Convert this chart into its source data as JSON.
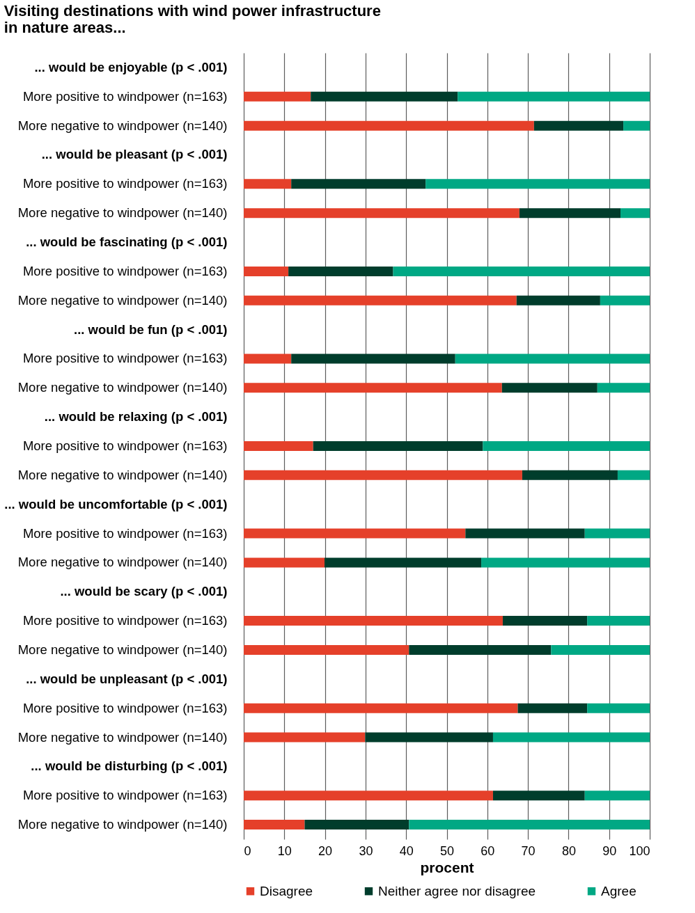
{
  "chart_data": {
    "type": "bar",
    "orientation": "horizontal",
    "stacked": true,
    "title": "Visiting destinations with wind power infrastructure\nin nature areas...",
    "xlabel": "procent",
    "categories": [
      "... would be enjoyable (p < .001)",
      "More positive to windpower (n=163)",
      "More negative to windpower (n=140)",
      "... would be pleasant (p < .001)",
      "More positive to windpower (n=163)",
      "More negative to windpower (n=140)",
      "... would be fascinating (p < .001)",
      "More positive to windpower (n=163)",
      "More negative to windpower (n=140)",
      "... would be fun (p < .001)",
      "More positive to windpower (n=163)",
      "More negative to windpower (n=140)",
      "... would be relaxing (p < .001)",
      "More positive to windpower (n=163)",
      "More negative to windpower (n=140)",
      "... would be uncomfortable (p < .001)",
      "More positive to windpower (n=163)",
      "More negative to windpower (n=140)",
      "... would be scary (p < .001)",
      "More positive to windpower (n=163)",
      "More negative to windpower (n=140)",
      "... would be unpleasant (p < .001)",
      "More positive to windpower (n=163)",
      "More negative to windpower (n=140)",
      "... would be disturbing (p < .001)",
      "More positive to windpower (n=163)",
      "More negative to windpower (n=140)"
    ],
    "series": [
      {
        "name": "Disagree",
        "color": "#e5402a",
        "values": [
          null,
          16.5,
          71.5,
          null,
          11.7,
          67.9,
          null,
          11.0,
          67.2,
          null,
          11.7,
          63.6,
          null,
          17.1,
          68.6,
          null,
          54.6,
          19.9,
          null,
          63.8,
          40.7,
          null,
          67.5,
          29.9,
          null,
          61.4,
          15.0
        ]
      },
      {
        "name": "Neither agree nor disagree",
        "color": "#003d2c",
        "values": [
          null,
          36.2,
          22.0,
          null,
          33.1,
          24.9,
          null,
          25.8,
          20.6,
          null,
          40.4,
          23.5,
          null,
          41.8,
          23.5,
          null,
          29.4,
          38.6,
          null,
          20.8,
          35.0,
          null,
          17.1,
          31.5,
          null,
          22.6,
          25.7
        ]
      },
      {
        "name": "Agree",
        "color": "#00a884",
        "values": [
          null,
          47.3,
          6.5,
          null,
          55.2,
          7.2,
          null,
          63.2,
          12.2,
          null,
          47.9,
          12.9,
          null,
          41.1,
          7.9,
          null,
          16.0,
          41.5,
          null,
          15.4,
          24.3,
          null,
          15.4,
          38.6,
          null,
          16.0,
          59.3
        ]
      }
    ],
    "xlim": [
      0,
      100
    ],
    "xticks": [
      0,
      10,
      20,
      30,
      40,
      50,
      60,
      70,
      80,
      90,
      100
    ],
    "grid": "x",
    "legend": "bottom"
  }
}
